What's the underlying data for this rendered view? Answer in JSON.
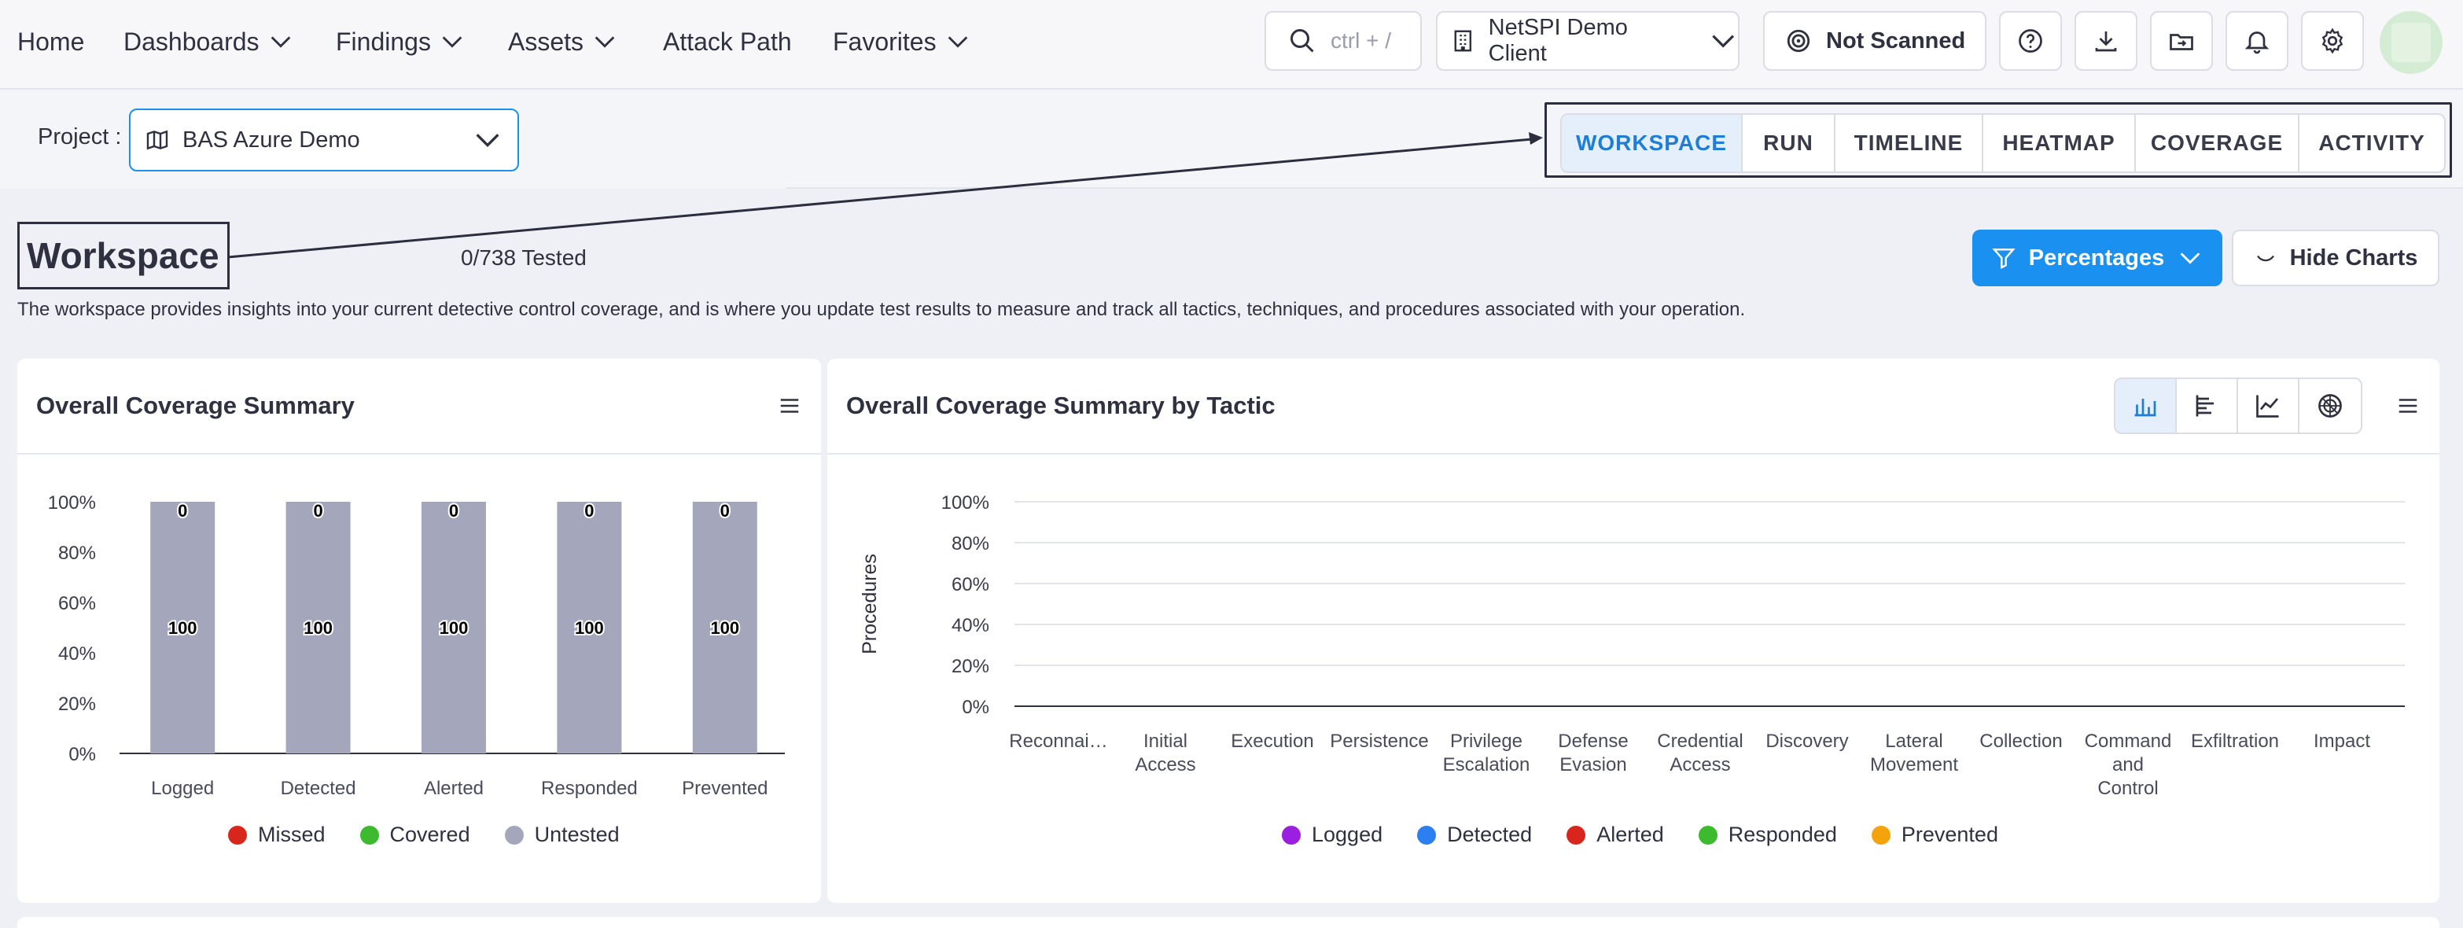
{
  "nav": {
    "home": "Home",
    "dashboards": "Dashboards",
    "findings": "Findings",
    "assets": "Assets",
    "attack_path": "Attack Path",
    "favorites": "Favorites"
  },
  "toolbar": {
    "search_placeholder": "ctrl + /",
    "client": "NetSPI Demo Client",
    "scan_status": "Not Scanned"
  },
  "project": {
    "label": "Project :",
    "selected": "BAS Azure Demo"
  },
  "tabs": [
    {
      "label": "WORKSPACE",
      "active": true
    },
    {
      "label": "RUN",
      "active": false
    },
    {
      "label": "TIMELINE",
      "active": false
    },
    {
      "label": "HEATMAP",
      "active": false
    },
    {
      "label": "COVERAGE",
      "active": false
    },
    {
      "label": "ACTIVITY",
      "active": false
    }
  ],
  "workspace": {
    "title": "Workspace",
    "tested": "0/738 Tested",
    "description": "The workspace provides insights into your current detective control coverage, and is where you update test results to measure and track all tactics, techniques, and procedures associated with your operation.",
    "percentages_button": "Percentages",
    "hide_charts_button": "Hide Charts"
  },
  "colors": {
    "accent": "#1a90f0",
    "missed": "#d9261c",
    "covered": "#3dbb2e",
    "untested": "#a4a7bb",
    "logged": "#9b1fe0",
    "detected": "#2b7ff0",
    "alerted": "#d9261c",
    "responded": "#3dbb2e",
    "prevented": "#f5a30c"
  },
  "chart_data": [
    {
      "type": "bar",
      "title": "Overall Coverage Summary",
      "stacked": true,
      "categories": [
        "Logged",
        "Detected",
        "Alerted",
        "Responded",
        "Prevented"
      ],
      "series": [
        {
          "name": "Missed",
          "values": [
            0,
            0,
            0,
            0,
            0
          ]
        },
        {
          "name": "Covered",
          "values": [
            0,
            0,
            0,
            0,
            0
          ]
        },
        {
          "name": "Untested",
          "values": [
            100,
            100,
            100,
            100,
            100
          ]
        }
      ],
      "bar_top_labels": [
        "0",
        "0",
        "0",
        "0",
        "0"
      ],
      "bar_mid_labels": [
        "100",
        "100",
        "100",
        "100",
        "100"
      ],
      "yticks": [
        "0%",
        "20%",
        "40%",
        "60%",
        "80%",
        "100%"
      ],
      "ylim": [
        0,
        100
      ],
      "legend": [
        "Missed",
        "Covered",
        "Untested"
      ]
    },
    {
      "type": "bar",
      "title": "Overall Coverage Summary by Tactic",
      "ylabel": "Procedures",
      "categories": [
        "Reconnai…",
        "Initial Access",
        "Execution",
        "Persistence",
        "Privilege Escalation",
        "Defense Evasion",
        "Credential Access",
        "Discovery",
        "Lateral Movement",
        "Collection",
        "Command and Control",
        "Exfiltration",
        "Impact"
      ],
      "category_lines": [
        [
          "Reconnai…"
        ],
        [
          "Initial",
          "Access"
        ],
        [
          "Execution"
        ],
        [
          "Persistence"
        ],
        [
          "Privilege",
          "Escalation"
        ],
        [
          "Defense",
          "Evasion"
        ],
        [
          "Credential",
          "Access"
        ],
        [
          "Discovery"
        ],
        [
          "Lateral",
          "Movement"
        ],
        [
          "Collection"
        ],
        [
          "Command",
          "and",
          "Control"
        ],
        [
          "Exfiltration"
        ],
        [
          "Impact"
        ]
      ],
      "series": [
        {
          "name": "Logged",
          "values": [
            0,
            0,
            0,
            0,
            0,
            0,
            0,
            0,
            0,
            0,
            0,
            0,
            0
          ]
        },
        {
          "name": "Detected",
          "values": [
            0,
            0,
            0,
            0,
            0,
            0,
            0,
            0,
            0,
            0,
            0,
            0,
            0
          ]
        },
        {
          "name": "Alerted",
          "values": [
            0,
            0,
            0,
            0,
            0,
            0,
            0,
            0,
            0,
            0,
            0,
            0,
            0
          ]
        },
        {
          "name": "Responded",
          "values": [
            0,
            0,
            0,
            0,
            0,
            0,
            0,
            0,
            0,
            0,
            0,
            0,
            0
          ]
        },
        {
          "name": "Prevented",
          "values": [
            0,
            0,
            0,
            0,
            0,
            0,
            0,
            0,
            0,
            0,
            0,
            0,
            0
          ]
        }
      ],
      "yticks": [
        "0%",
        "20%",
        "40%",
        "60%",
        "80%",
        "100%"
      ],
      "ylim": [
        0,
        100
      ],
      "legend": [
        "Logged",
        "Detected",
        "Alerted",
        "Responded",
        "Prevented"
      ]
    }
  ]
}
